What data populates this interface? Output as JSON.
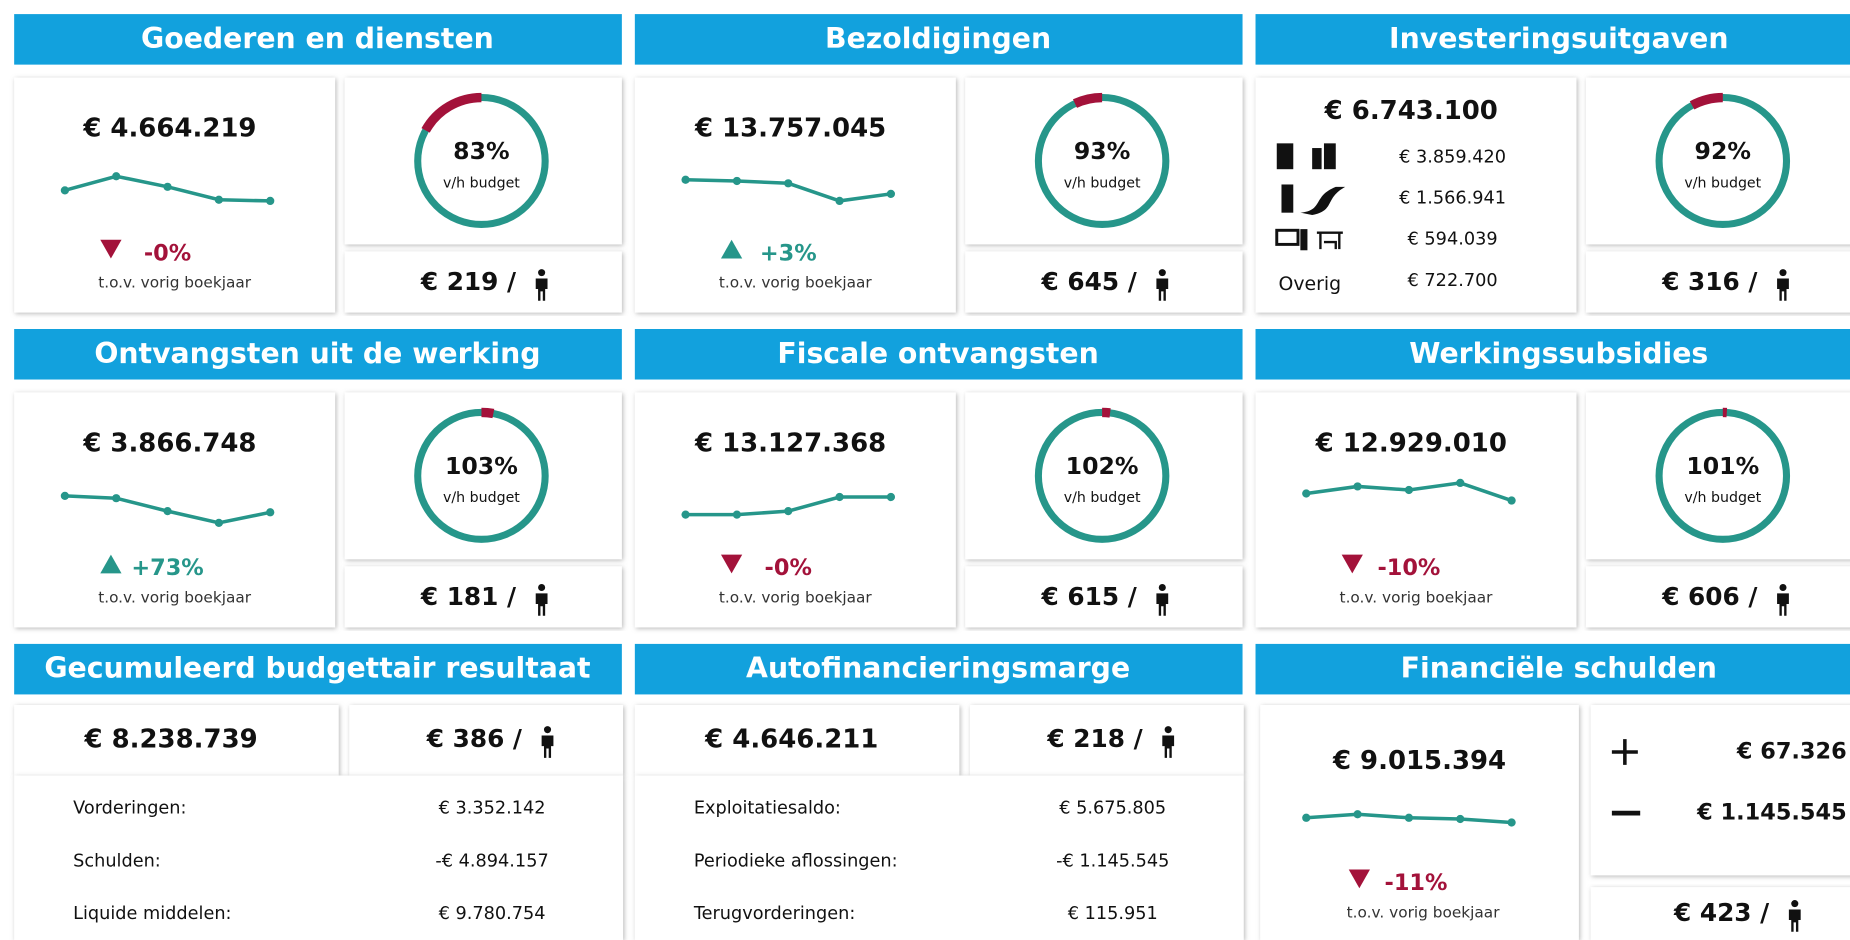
{
  "panels": [
    {
      "title": "Goederen en diensten",
      "amount": "€ 4.664.219",
      "trend": [
        18,
        30,
        21,
        10,
        9
      ],
      "direction": "down",
      "change": "-0%",
      "change_note": "t.o.v. vorig boekjaar",
      "percent": 83,
      "percent_label": "83%",
      "budget_note": "v/h budget",
      "per_capita": "€ 219 /"
    },
    {
      "title": "Bezoldigingen",
      "amount": "€ 13.757.045",
      "trend": [
        27,
        26,
        24,
        9,
        15
      ],
      "direction": "up",
      "change": "+3%",
      "change_note": "t.o.v. vorig boekjaar",
      "percent": 93,
      "percent_label": "93%",
      "budget_note": "v/h budget",
      "per_capita": "€ 645 /"
    },
    {
      "title": "Investeringsuitgaven",
      "amount": "€ 6.743.100",
      "breakdown": [
        {
          "amount": "€ 3.859.420"
        },
        {
          "amount": "€ 1.566.941"
        },
        {
          "amount": "€ 594.039"
        },
        {
          "label": "Overig",
          "amount": "€ 722.700"
        }
      ],
      "percent": 92,
      "percent_label": "92%",
      "budget_note": "v/h budget",
      "per_capita": "€ 316 /"
    },
    {
      "title": "Ontvangsten uit de werking",
      "amount": "€ 3.866.748",
      "trend": [
        26,
        24,
        13,
        3,
        12
      ],
      "direction": "up",
      "change": "+73%",
      "change_note": "t.o.v. vorig boekjaar",
      "percent": 103,
      "percent_label": "103%",
      "budget_note": "v/h budget",
      "per_capita": "€ 181 /"
    },
    {
      "title": "Fiscale ontvangsten",
      "amount": "€ 13.127.368",
      "trend": [
        10,
        10,
        13,
        25,
        25
      ],
      "direction": "down",
      "change": "-0%",
      "change_note": "t.o.v. vorig boekjaar",
      "percent": 102,
      "percent_label": "102%",
      "budget_note": "v/h budget",
      "per_capita": "€ 615 /"
    },
    {
      "title": "Werkingssubsidies",
      "amount": "€ 12.929.010",
      "trend": [
        28,
        34,
        31,
        37,
        22
      ],
      "direction": "down",
      "change": "-10%",
      "change_note": "t.o.v. vorig boekjaar",
      "percent": 101,
      "percent_label": "101%",
      "budget_note": "v/h budget",
      "per_capita": "€ 606 /"
    },
    {
      "title": "Gecumuleerd budgettair resultaat",
      "amount": "€ 8.238.739",
      "per_capita": "€ 386 /",
      "rows": [
        [
          "Vorderingen:",
          "€ 3.352.142"
        ],
        [
          "Schulden:",
          "-€ 4.894.157"
        ],
        [
          "Liquide middelen:",
          "€ 9.780.754"
        ]
      ]
    },
    {
      "title": "Autofinancieringsmarge",
      "amount": "€ 4.646.211",
      "per_capita": "€ 218 /",
      "rows": [
        [
          "Exploitatiesaldo:",
          "€ 5.675.805"
        ],
        [
          "Periodieke aflossingen:",
          "-€ 1.145.545"
        ],
        [
          "Terugvorderingen:",
          "€ 115.951"
        ]
      ]
    },
    {
      "title": "Financiële schulden",
      "amount": "€ 9.015.394",
      "trend": [
        20,
        23,
        20,
        19,
        16
      ],
      "direction": "down",
      "change": "-11%",
      "change_note": "t.o.v. vorig boekjaar",
      "increase": "€ 67.326",
      "decrease": "€ 1.145.545",
      "per_capita": "€ 423 /"
    }
  ]
}
